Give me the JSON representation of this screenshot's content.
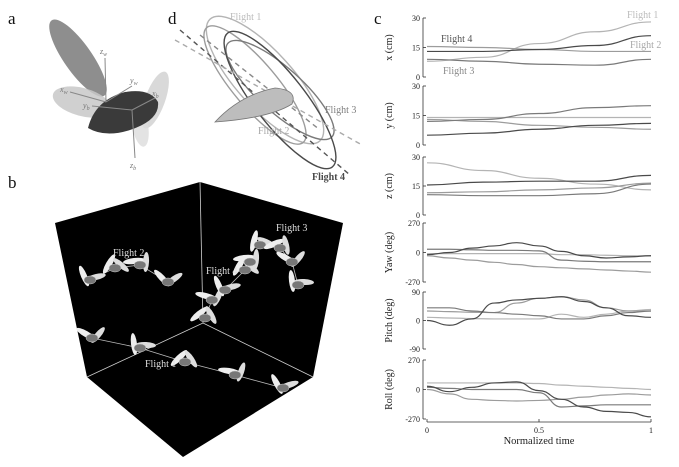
{
  "panels": {
    "a": "a",
    "b": "b",
    "c": "c",
    "d": "d"
  },
  "panel_a": {
    "axes": [
      {
        "main": "z",
        "sub": "w"
      },
      {
        "main": "y",
        "sub": "w"
      },
      {
        "main": "x",
        "sub": "w"
      },
      {
        "main": "x",
        "sub": "b"
      },
      {
        "main": "y",
        "sub": "b"
      },
      {
        "main": "z",
        "sub": "b"
      }
    ]
  },
  "panel_b": {
    "labels": [
      "Flight 1",
      "Flight 2",
      "Flight 3",
      "Flight 4"
    ]
  },
  "panel_d": {
    "labels": [
      "Flight 1",
      "Flight 2",
      "Flight 3",
      "Flight 4"
    ]
  },
  "colors": {
    "Flight 1": "#b4b4b4",
    "Flight 2": "#9c9c9c",
    "Flight 3": "#7a7a7a",
    "Flight 4": "#4a4a4a"
  },
  "chart_data": {
    "type": "line",
    "xlabel": "Normalized time",
    "x_ticks": [
      "0",
      "0.5",
      "1"
    ],
    "xlim": [
      0,
      1
    ],
    "subplots": [
      {
        "ylabel": "x (cm)",
        "ylim": [
          0,
          30
        ],
        "y_ticks": [
          "0",
          "15",
          "30"
        ],
        "labels": [
          "Flight 1",
          "Flight 2",
          "Flight 3",
          "Flight 4"
        ],
        "x": [
          0,
          0.25,
          0.5,
          0.75,
          1
        ],
        "series": [
          {
            "name": "Flight 1",
            "values": [
              8,
              10,
              17,
              23,
              28
            ]
          },
          {
            "name": "Flight 2",
            "values": [
              15.5,
              15,
              14,
              13,
              13
            ]
          },
          {
            "name": "Flight 3",
            "values": [
              9,
              8,
              6.5,
              6,
              9
            ]
          },
          {
            "name": "Flight 4",
            "values": [
              13,
              13,
              14,
              16,
              21
            ]
          }
        ]
      },
      {
        "ylabel": "y (cm)",
        "ylim": [
          0,
          30
        ],
        "y_ticks": [
          "0",
          "15",
          "30"
        ],
        "x": [
          0,
          0.25,
          0.5,
          0.75,
          1
        ],
        "series": [
          {
            "values": [
              14,
              14,
              14,
              14,
              14
            ]
          },
          {
            "values": [
              13,
              12,
              10,
              9,
              8
            ]
          },
          {
            "values": [
              12,
              13,
              16,
              19,
              20
            ]
          },
          {
            "values": [
              5,
              6,
              8,
              10,
              11
            ]
          }
        ]
      },
      {
        "ylabel": "z (cm)",
        "ylim": [
          0,
          30
        ],
        "y_ticks": [
          "0",
          "15",
          "30"
        ],
        "x": [
          0,
          0.25,
          0.5,
          0.75,
          1
        ],
        "series": [
          {
            "values": [
              27,
              23,
              19,
              16,
              13
            ]
          },
          {
            "values": [
              11.5,
              12,
              13,
              14,
              16.5
            ]
          },
          {
            "values": [
              10.5,
              10,
              10,
              11,
              16
            ]
          },
          {
            "values": [
              15.5,
              17,
              17.5,
              17.5,
              20.5
            ]
          }
        ]
      },
      {
        "ylabel": "Yaw (deg)",
        "ylim": [
          -270,
          270
        ],
        "y_ticks": [
          "-270",
          "0",
          "270"
        ],
        "x": [
          0,
          0.1,
          0.2,
          0.3,
          0.4,
          0.5,
          0.6,
          0.7,
          0.8,
          0.9,
          1
        ],
        "series": [
          {
            "values": [
              -10,
              -10,
              -10,
              -10,
              -10,
              -10,
              -20,
              -20,
              -25,
              -30,
              -30
            ]
          },
          {
            "values": [
              -30,
              -50,
              -70,
              -90,
              -110,
              -130,
              -140,
              -150,
              -160,
              -170,
              -180
            ]
          },
          {
            "values": [
              30,
              30,
              25,
              20,
              20,
              15,
              -70,
              -80,
              -85,
              -85,
              -85
            ]
          },
          {
            "values": [
              -20,
              0,
              40,
              60,
              90,
              60,
              10,
              -30,
              -50,
              -40,
              -30
            ]
          }
        ]
      },
      {
        "ylabel": "Pitch (deg)",
        "ylim": [
          -90,
          90
        ],
        "y_ticks": [
          "-90",
          "0",
          "90"
        ],
        "x": [
          0,
          0.1,
          0.2,
          0.3,
          0.4,
          0.5,
          0.6,
          0.7,
          0.8,
          0.9,
          1
        ],
        "series": [
          {
            "values": [
              10,
              8,
              6,
              5,
              5,
              5,
              20,
              10,
              20,
              30,
              35
            ]
          },
          {
            "values": [
              30,
              28,
              26,
              25,
              55,
              70,
              75,
              65,
              40,
              30,
              30
            ]
          },
          {
            "values": [
              40,
              40,
              30,
              25,
              20,
              15,
              5,
              5,
              15,
              25,
              30
            ]
          },
          {
            "values": [
              0,
              -15,
              5,
              55,
              65,
              70,
              75,
              60,
              40,
              15,
              10
            ]
          }
        ]
      },
      {
        "ylabel": "Roll (deg)",
        "ylim": [
          -270,
          270
        ],
        "y_ticks": [
          "-270",
          "0",
          "270"
        ],
        "x": [
          0,
          0.1,
          0.2,
          0.3,
          0.4,
          0.5,
          0.6,
          0.7,
          0.8,
          0.9,
          1
        ],
        "series": [
          {
            "values": [
              60,
              60,
              60,
              60,
              60,
              55,
              40,
              30,
              20,
              10,
              0
            ]
          },
          {
            "values": [
              0,
              -40,
              -90,
              -100,
              -105,
              -100,
              -90,
              -70,
              -50,
              -40,
              -50
            ]
          },
          {
            "values": [
              20,
              10,
              0,
              0,
              0,
              -30,
              -160,
              -150,
              -140,
              -140,
              -140
            ]
          },
          {
            "values": [
              30,
              -20,
              20,
              60,
              70,
              -10,
              -90,
              -160,
              -200,
              -210,
              -250
            ]
          }
        ]
      }
    ]
  }
}
